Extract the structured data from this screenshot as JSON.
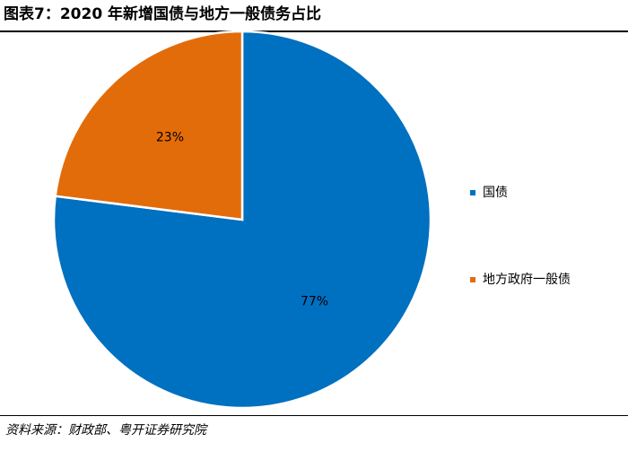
{
  "title": "图表7：2020 年新增国债与地方一般债务占比",
  "source": "资料来源：财政部、粤开证券研究院",
  "chart_data": {
    "type": "pie",
    "title": "图表7：2020 年新增国债与地方一般债务占比",
    "legend_position": "right",
    "start_angle": "12 o'clock",
    "direction": "clockwise",
    "slices": [
      {
        "name": "国债",
        "value": 77,
        "label": "77%",
        "color": "#0070C0"
      },
      {
        "name": "地方政府一般债",
        "value": 23,
        "label": "23%",
        "color": "#E36C0A"
      }
    ]
  }
}
